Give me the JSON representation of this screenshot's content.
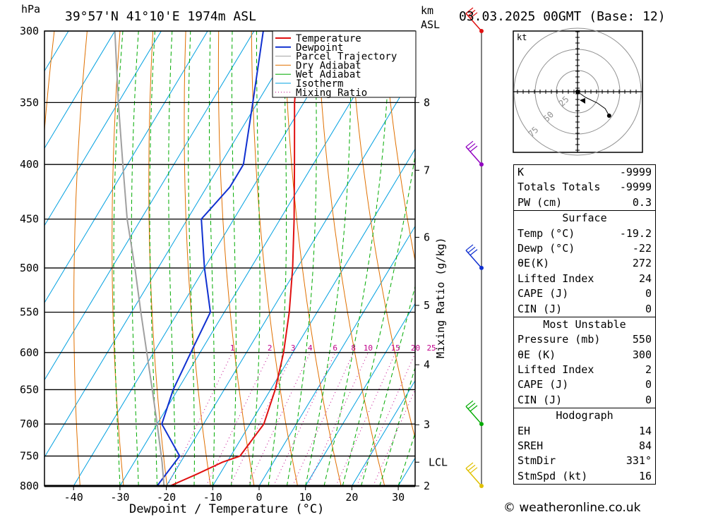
{
  "header": {
    "location": "39°57'N  41°10'E  1974m  ASL",
    "datetime": "03.03.2025  00GMT  (Base: 12)",
    "pressure_unit": "hPa",
    "km_unit": "km",
    "asl_unit": "ASL"
  },
  "legend": [
    "Temperature",
    "Dewpoint",
    "Parcel Trajectory",
    "Dry Adiabat",
    "Wet Adiabat",
    "Isotherm",
    "Mixing Ratio"
  ],
  "colors": {
    "temperature": "#e01010",
    "dewpoint": "#1030d0",
    "parcel": "#a0a0a0",
    "dry_adiabat": "#e07000",
    "wet_adiabat": "#00aa00",
    "isotherm": "#00a0e0",
    "mixing_ratio": "#c0008a"
  },
  "chart_data": {
    "type": "line",
    "title": "39°57'N  41°10'E  1974m  ASL",
    "xlabel": "Dewpoint / Temperature (°C)",
    "ylabel": "hPa",
    "y2label": "Mixing Ratio (g/kg)",
    "x_ticks": [
      -40,
      -30,
      -20,
      -10,
      0,
      10,
      20,
      30
    ],
    "pressure_levels": [
      300,
      350,
      400,
      450,
      500,
      550,
      600,
      650,
      700,
      750,
      800
    ],
    "ylim": [
      800,
      300
    ],
    "km_ticks": [
      {
        "label": "8",
        "p": 350
      },
      {
        "label": "7",
        "p": 405
      },
      {
        "label": "6",
        "p": 468
      },
      {
        "label": "5",
        "p": 542
      },
      {
        "label": "4",
        "p": 616
      },
      {
        "label": "3",
        "p": 701
      },
      {
        "label": "LCL",
        "p": 760
      },
      {
        "label": "2",
        "p": 800
      }
    ],
    "mixing_ratio_labels": [
      "1",
      "2",
      "3",
      "4",
      "6",
      "8",
      "10",
      "15",
      "20",
      "25"
    ],
    "series": [
      {
        "name": "Temperature",
        "points": [
          {
            "p": 800,
            "t": -19.2
          },
          {
            "p": 780,
            "t": -15
          },
          {
            "p": 760,
            "t": -11
          },
          {
            "p": 750,
            "t": -8
          },
          {
            "p": 700,
            "t": -7
          },
          {
            "p": 650,
            "t": -9
          },
          {
            "p": 600,
            "t": -12
          },
          {
            "p": 550,
            "t": -16
          },
          {
            "p": 500,
            "t": -21
          },
          {
            "p": 450,
            "t": -27
          },
          {
            "p": 400,
            "t": -34
          },
          {
            "p": 350,
            "t": -42
          },
          {
            "p": 300,
            "t": -50
          }
        ]
      },
      {
        "name": "Dewpoint",
        "points": [
          {
            "p": 800,
            "t": -22
          },
          {
            "p": 750,
            "t": -21
          },
          {
            "p": 700,
            "t": -29
          },
          {
            "p": 650,
            "t": -31
          },
          {
            "p": 600,
            "t": -32
          },
          {
            "p": 550,
            "t": -33
          },
          {
            "p": 500,
            "t": -40
          },
          {
            "p": 450,
            "t": -47
          },
          {
            "p": 420,
            "t": -45
          },
          {
            "p": 400,
            "t": -45
          },
          {
            "p": 350,
            "t": -51
          },
          {
            "p": 300,
            "t": -58
          }
        ]
      },
      {
        "name": "Parcel Trajectory",
        "points": [
          {
            "p": 800,
            "t": -20.5
          },
          {
            "p": 760,
            "t": -24
          },
          {
            "p": 700,
            "t": -30
          },
          {
            "p": 650,
            "t": -35.5
          },
          {
            "p": 600,
            "t": -41.5
          },
          {
            "p": 550,
            "t": -48
          },
          {
            "p": 500,
            "t": -55
          },
          {
            "p": 450,
            "t": -63
          },
          {
            "p": 400,
            "t": -71
          },
          {
            "p": 350,
            "t": -80
          },
          {
            "p": 300,
            "t": -90
          }
        ]
      }
    ],
    "wind_profile": [
      {
        "p": 300,
        "color": "#e01010"
      },
      {
        "p": 400,
        "color": "#9000c0"
      },
      {
        "p": 500,
        "color": "#1030d0"
      },
      {
        "p": 700,
        "color": "#00aa00"
      },
      {
        "p": 800,
        "color": "#e0c000"
      }
    ],
    "hodograph": {
      "unit_label": "kt",
      "ring_labels": [
        "25",
        "50",
        "75"
      ],
      "points": [
        [
          0,
          0
        ],
        [
          4,
          -4
        ],
        [
          10,
          -8
        ],
        [
          14,
          -12
        ],
        [
          16,
          -17
        ]
      ]
    }
  },
  "indices": {
    "rows1": [
      [
        "K",
        "-9999"
      ],
      [
        "Totals Totals",
        "-9999"
      ],
      [
        "PW (cm)",
        "0.3"
      ]
    ],
    "surface": {
      "title": "Surface",
      "rows": [
        [
          "Temp (°C)",
          "-19.2"
        ],
        [
          "Dewp (°C)",
          "-22"
        ],
        [
          "θE(K)",
          "272"
        ],
        [
          "Lifted Index",
          "24"
        ],
        [
          "CAPE (J)",
          "0"
        ],
        [
          "CIN (J)",
          "0"
        ]
      ]
    },
    "unstable": {
      "title": "Most Unstable",
      "rows": [
        [
          "Pressure (mb)",
          "550"
        ],
        [
          "θE (K)",
          "300"
        ],
        [
          "Lifted Index",
          "2"
        ],
        [
          "CAPE (J)",
          "0"
        ],
        [
          "CIN (J)",
          "0"
        ]
      ]
    },
    "hodograph": {
      "title": "Hodograph",
      "rows": [
        [
          "EH",
          "14"
        ],
        [
          "SREH",
          "84"
        ],
        [
          "StmDir",
          "331°"
        ],
        [
          "StmSpd (kt)",
          "16"
        ]
      ]
    }
  },
  "credit": "© weatheronline.co.uk"
}
